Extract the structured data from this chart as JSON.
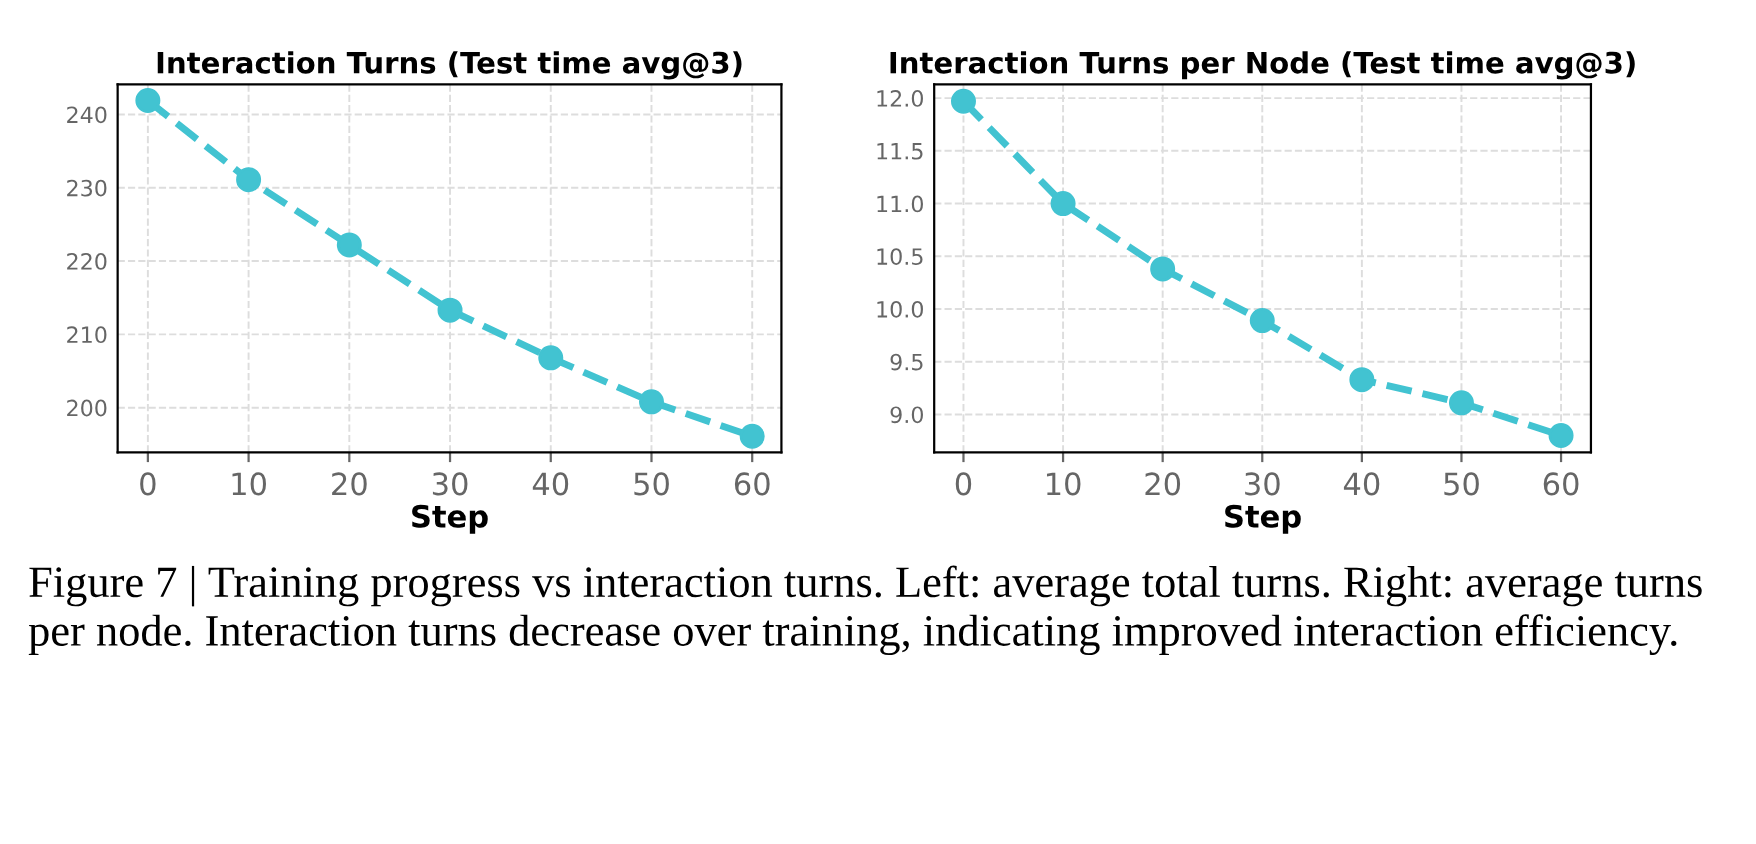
{
  "chart_data": [
    {
      "type": "line",
      "title": "Interaction Turns (Test time avg@3)",
      "xlabel": "Step",
      "x": [
        0,
        10,
        20,
        30,
        40,
        50,
        60
      ],
      "series": [
        {
          "color": "#42c3d1",
          "values": [
            241.9,
            231.1,
            222.2,
            213.3,
            206.8,
            200.8,
            196.1
          ]
        }
      ],
      "xlim": [
        -3,
        62.9
      ],
      "ylim": [
        193.9,
        244.1
      ],
      "xticks": [
        0,
        10,
        20,
        30,
        40,
        50,
        60
      ],
      "yticks": [
        200,
        210,
        220,
        230,
        240
      ],
      "grid": true,
      "marker": "circle",
      "line_style": "dashed",
      "annotations": [
        "Figure 7 | Training progress vs interaction turns. Left: average total turns. Right: average turns per node. Interaction turns decrease over training, indicating improved interaction efficiency."
      ]
    },
    {
      "type": "line",
      "title": "Interaction Turns per Node (Test time avg@3)",
      "xlabel": "Step",
      "x": [
        0,
        10,
        20,
        30,
        40,
        50,
        60
      ],
      "series": [
        {
          "color": "#42c3d1",
          "values": [
            11.97,
            11.0,
            10.38,
            9.89,
            9.33,
            9.11,
            8.8
          ]
        }
      ],
      "xlim": [
        -2.94,
        63.0
      ],
      "ylim": [
        8.64,
        12.13
      ],
      "xticks": [
        0,
        10,
        20,
        30,
        40,
        50,
        60
      ],
      "yticks": [
        {
          "value": 9,
          "label": "9.0"
        },
        9.5,
        {
          "value": 10,
          "label": "10.0"
        },
        10.5,
        {
          "value": 11,
          "label": "11.0"
        },
        11.5,
        {
          "value": 12,
          "label": "12.0"
        }
      ],
      "grid": true,
      "marker": "circle",
      "line_style": "dashed"
    }
  ]
}
